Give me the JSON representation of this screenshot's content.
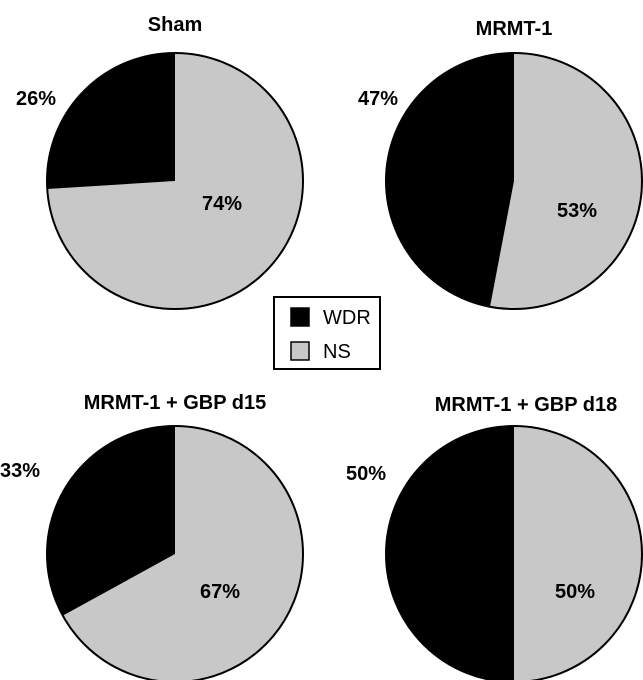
{
  "chart_data": [
    {
      "type": "pie",
      "title": "Sham",
      "slices": [
        {
          "name": "WDR",
          "value": 26,
          "label": "26%"
        },
        {
          "name": "NS",
          "value": 74,
          "label": "74%"
        }
      ]
    },
    {
      "type": "pie",
      "title": "MRMT-1",
      "slices": [
        {
          "name": "WDR",
          "value": 47,
          "label": "47%"
        },
        {
          "name": "NS",
          "value": 53,
          "label": "53%"
        }
      ]
    },
    {
      "type": "pie",
      "title": "MRMT-1 + GBP d15",
      "slices": [
        {
          "name": "WDR",
          "value": 33,
          "label": "33%"
        },
        {
          "name": "NS",
          "value": 67,
          "label": "67%"
        }
      ]
    },
    {
      "type": "pie",
      "title": "MRMT-1 + GBP d18",
      "slices": [
        {
          "name": "WDR",
          "value": 50,
          "label": "50%"
        },
        {
          "name": "NS",
          "value": 50,
          "label": "50%"
        }
      ]
    }
  ],
  "legend": {
    "items": [
      {
        "label": "WDR",
        "color": "#000000"
      },
      {
        "label": "NS",
        "color": "#c8c8c8"
      }
    ]
  },
  "colors": {
    "WDR": "#000000",
    "NS": "#c8c8c8",
    "outline": "#000000",
    "background": "#ffffff"
  }
}
